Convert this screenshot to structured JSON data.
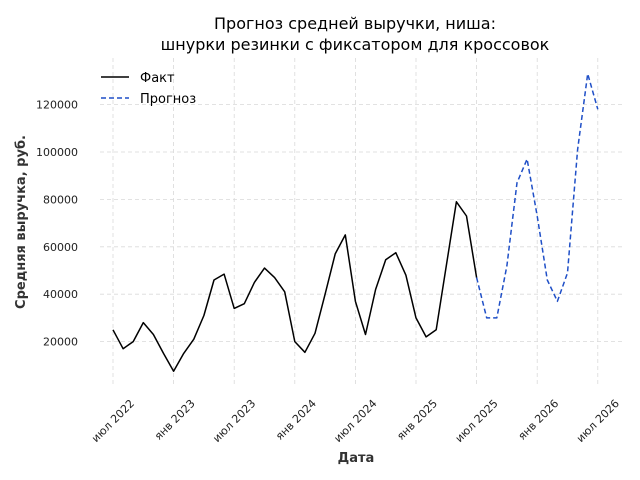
{
  "chart_data": {
    "type": "line",
    "title_line1": "Прогноз средней выручки, ниша:",
    "title_line2": "шнурки резинки с фиксатором для кроссовок",
    "xlabel": "Дата",
    "ylabel": "Средняя выручка, руб.",
    "x_ticks": [
      "июл 2022",
      "янв 2023",
      "июл 2023",
      "янв 2024",
      "июл 2024",
      "янв 2025",
      "июл 2025",
      "янв 2026",
      "июл 2026"
    ],
    "y_ticks": [
      "20000",
      "40000",
      "60000",
      "80000",
      "100000",
      "120000"
    ],
    "ylim": [
      0,
      140000
    ],
    "grid": true,
    "legend_position": "top-left",
    "series": [
      {
        "name": "Факт",
        "style": "solid",
        "color": "#000000",
        "x": [
          "2022-07",
          "2022-08",
          "2022-09",
          "2022-10",
          "2022-11",
          "2022-12",
          "2023-01",
          "2023-02",
          "2023-03",
          "2023-04",
          "2023-05",
          "2023-06",
          "2023-07",
          "2023-08",
          "2023-09",
          "2023-10",
          "2023-11",
          "2023-12",
          "2024-01",
          "2024-02",
          "2024-03",
          "2024-04",
          "2024-05",
          "2024-06",
          "2024-07",
          "2024-08",
          "2024-09",
          "2024-10",
          "2024-11",
          "2024-12",
          "2025-01",
          "2025-02",
          "2025-03",
          "2025-04",
          "2025-05",
          "2025-06",
          "2025-07"
        ],
        "values": [
          25000,
          17000,
          20000,
          28000,
          23000,
          15000,
          7500,
          15000,
          21000,
          31000,
          46000,
          48500,
          34000,
          36000,
          45000,
          51000,
          47000,
          41000,
          20000,
          15500,
          23500,
          40000,
          57000,
          65000,
          37000,
          23000,
          42000,
          54500,
          57500,
          48000,
          30000,
          22000,
          25000,
          52000,
          79000,
          73000,
          47000
        ]
      },
      {
        "name": "Прогноз",
        "style": "dashed",
        "color": "#1f4fc7",
        "x": [
          "2025-07",
          "2025-08",
          "2025-09",
          "2025-10",
          "2025-11",
          "2025-12",
          "2026-01",
          "2026-02",
          "2026-03",
          "2026-04",
          "2026-05",
          "2026-06",
          "2026-07"
        ],
        "values": [
          47000,
          30000,
          30000,
          52000,
          87000,
          97000,
          73000,
          46000,
          37000,
          49000,
          101000,
          133000,
          118000
        ]
      }
    ]
  }
}
